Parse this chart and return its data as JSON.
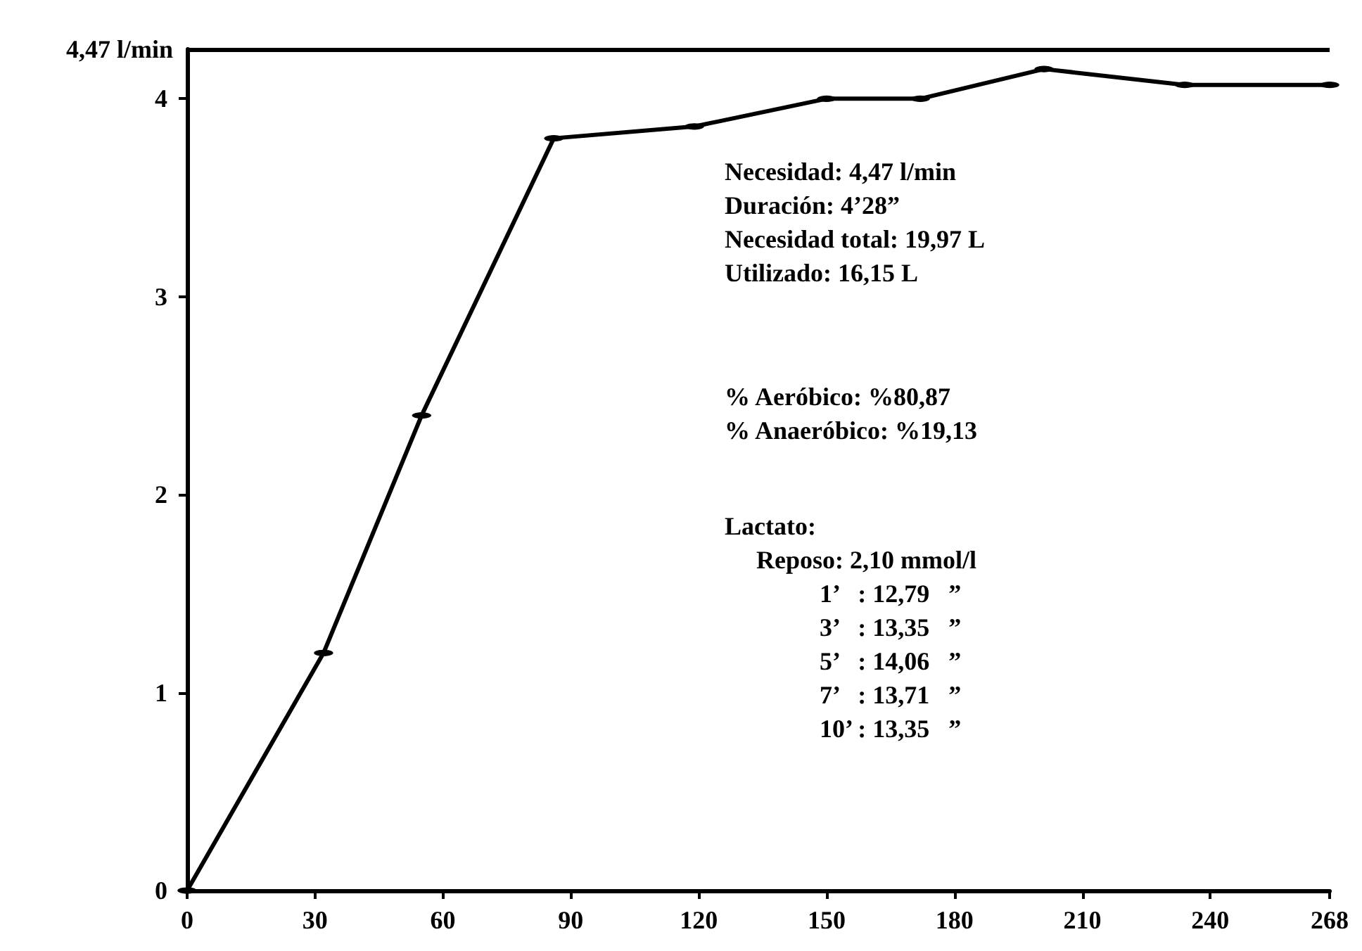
{
  "chart_data": {
    "type": "line",
    "ylabel": "4,47 l/min",
    "x": [
      0,
      32,
      55,
      86,
      119,
      150,
      172,
      201,
      234,
      268
    ],
    "series": [
      {
        "color": "#000000",
        "values": [
          0,
          1.2,
          2.4,
          3.8,
          3.86,
          4.0,
          4.0,
          4.15,
          4.07,
          4.07
        ]
      }
    ],
    "xlim": [
      0,
      268
    ],
    "xticks": [
      0,
      30,
      60,
      90,
      120,
      150,
      180,
      210,
      240,
      268
    ],
    "ylim": [
      0,
      4.25
    ],
    "yticks": [
      0,
      1,
      2,
      3,
      4
    ],
    "ref_lines": [
      {
        "axis": "y",
        "value": 4.25,
        "color": "#000000"
      }
    ],
    "marker": "circle",
    "line_style": "solid",
    "annotations": [
      "Necesidad: 4,47 l/min\nDuración: 4’28”\nNecesidad total: 19,97 L\nUtilizado: 16,15 L",
      "% Aeróbico: %80,87\n% Anaeróbico: %19,13",
      "Lactato:\n     Reposo: 2,10 mmol/l\n               1’   : 12,79   ”\n               3’   : 13,35   ”\n               5’   : 14,06   ”\n               7’   : 13,71   ”\n               10’ : 13,35   ”"
    ]
  }
}
